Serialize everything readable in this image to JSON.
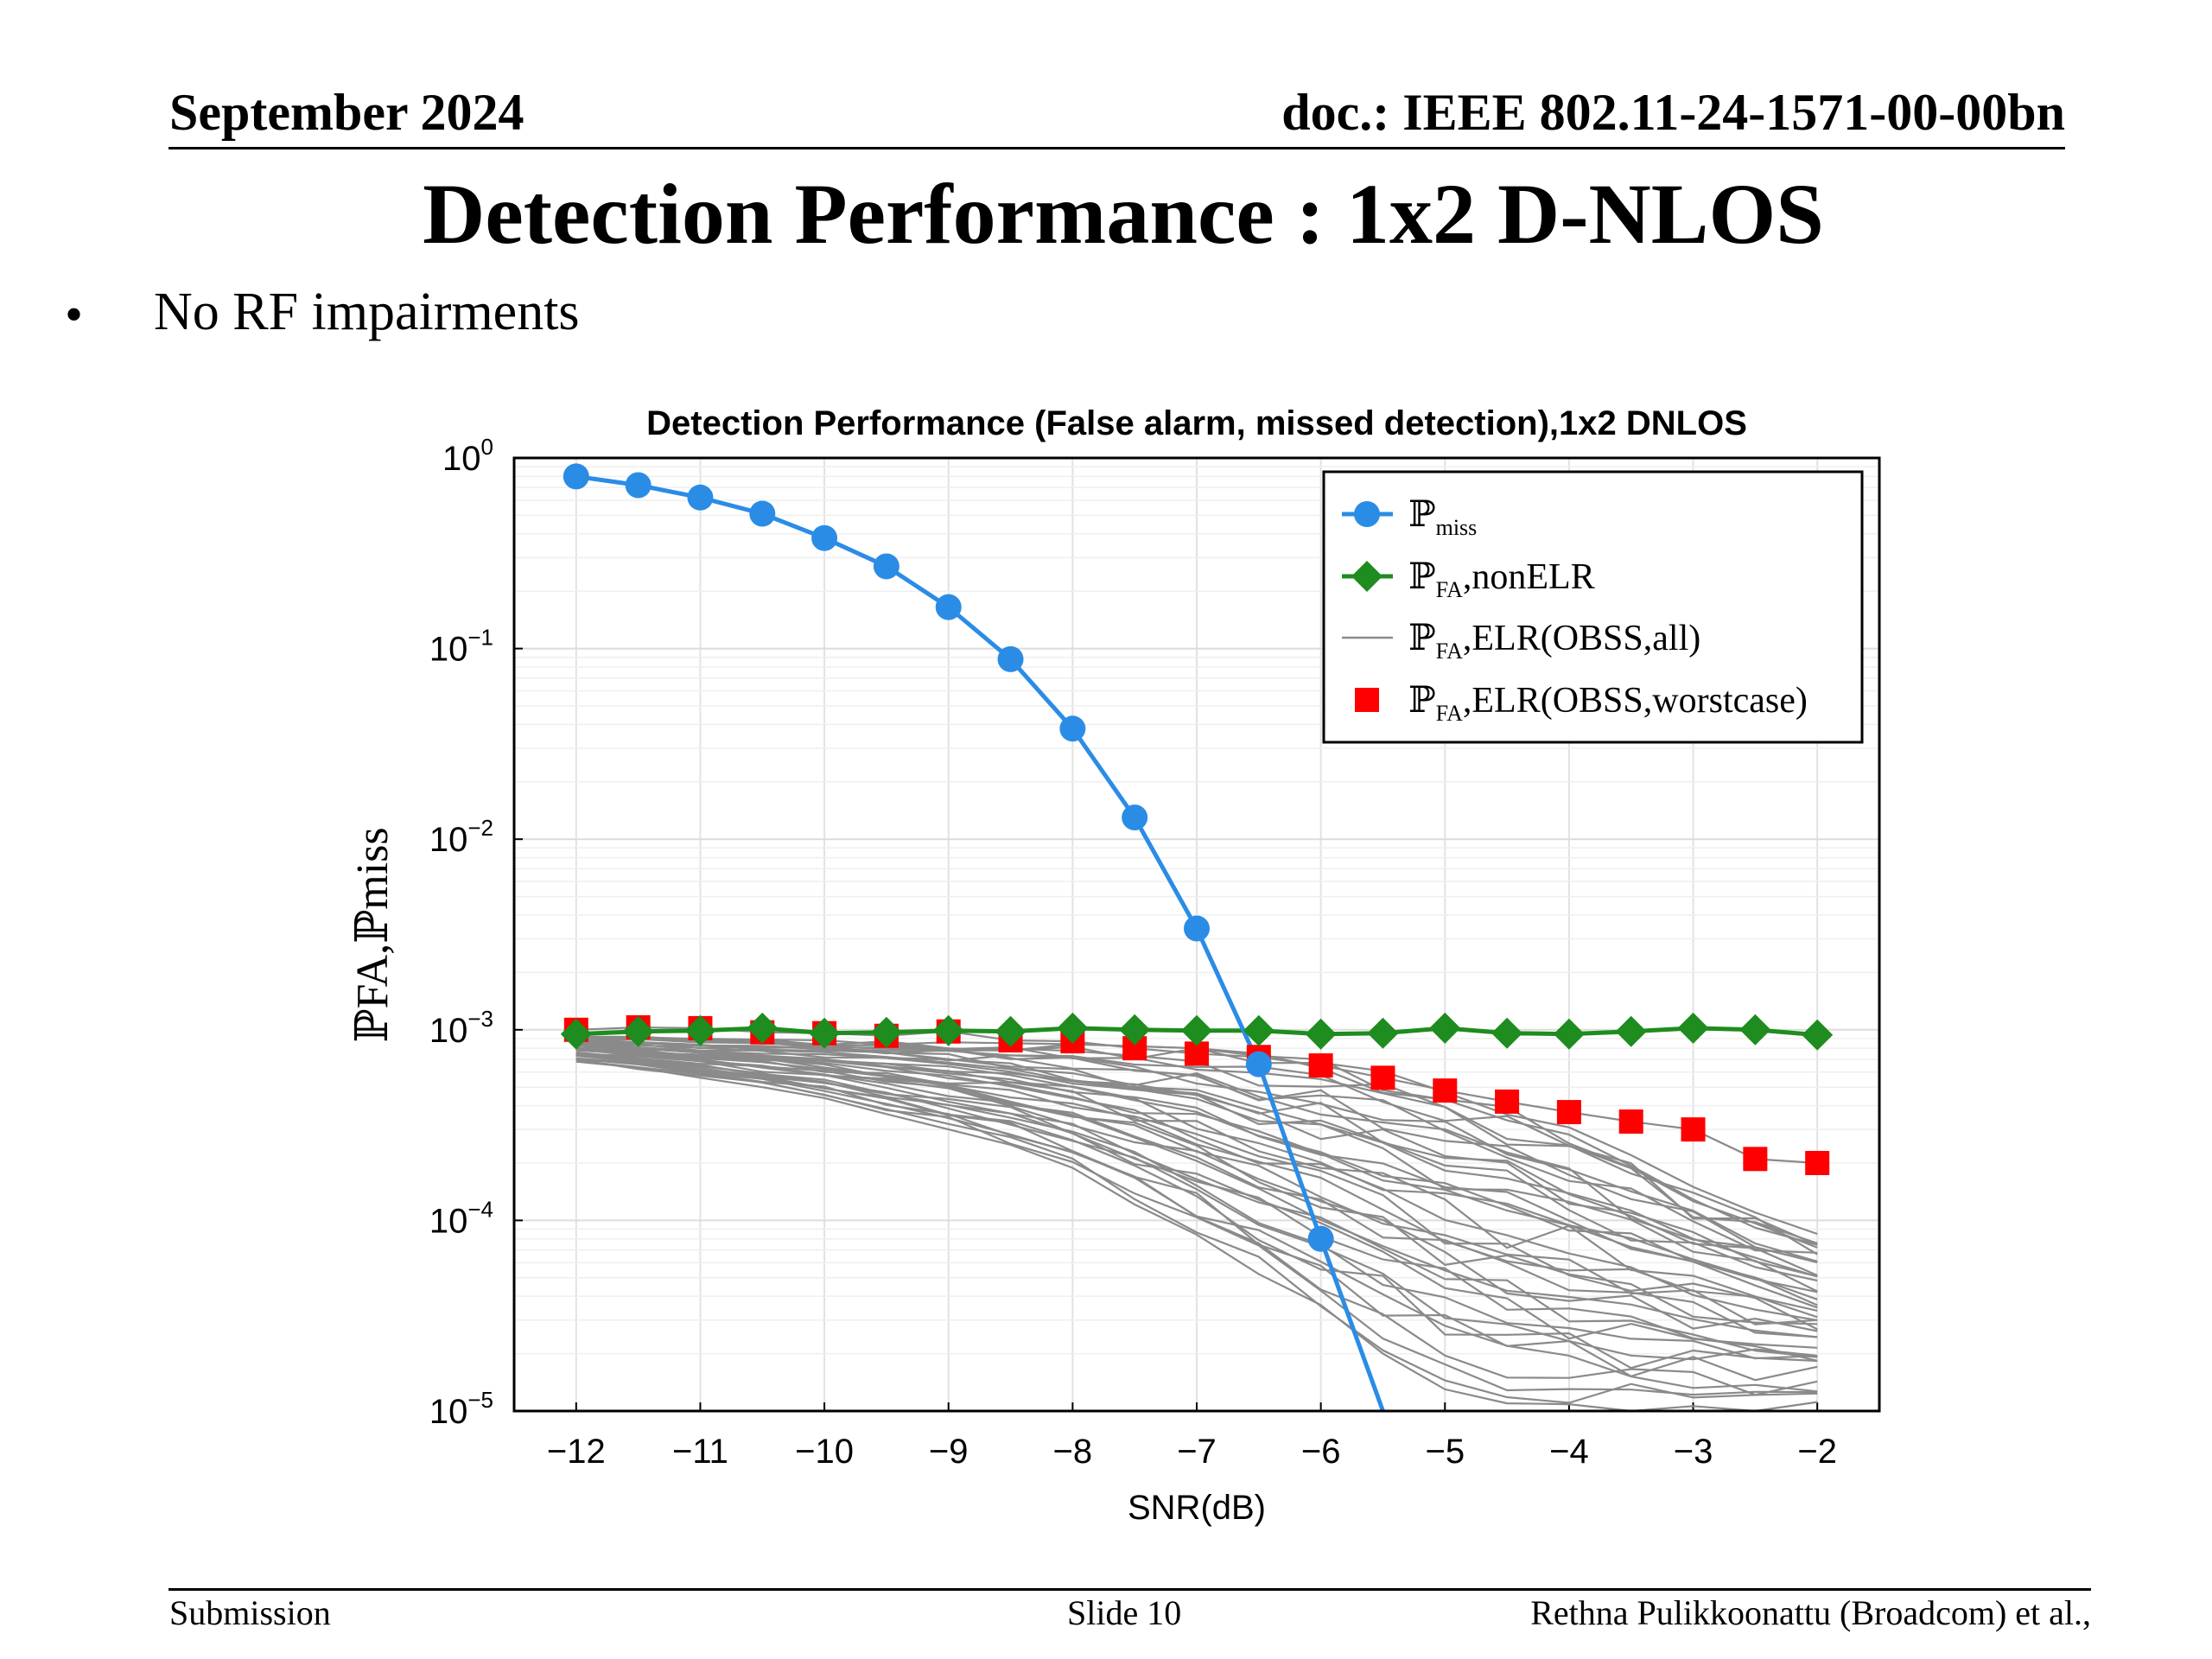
{
  "header": {
    "date": "September 2024",
    "doc": "doc.: IEEE 802.11-24-1571-00-00bn"
  },
  "slide": {
    "title": "Detection Performance : 1x2 D-NLOS",
    "bullet": "No RF impairments"
  },
  "footer": {
    "left": "Submission",
    "center": "Slide 10",
    "right": "Rethna Pulikkoonattu (Broadcom) et al.,"
  },
  "chart_data": {
    "type": "line",
    "title": "Detection Performance (False alarm, missed detection),1x2 DNLOS",
    "xlabel": "SNR(dB)",
    "ylabel": "ℙFA,ℙmiss",
    "xlim": [
      -12.5,
      -1.5
    ],
    "ylim": [
      1e-05,
      1
    ],
    "yscale": "log",
    "grid": true,
    "legend_position": "top-right",
    "x_ticks": [
      -12,
      -11,
      -10,
      -9,
      -8,
      -7,
      -6,
      -5,
      -4,
      -3,
      -2
    ],
    "x_tick_labels": [
      "−12",
      "−11",
      "−10",
      "−9",
      "−8",
      "−7",
      "−6",
      "−5",
      "−4",
      "−3",
      "−2"
    ],
    "y_ticks": [
      {
        "value": 1,
        "base": "10",
        "exp": "0"
      },
      {
        "value": 0.1,
        "base": "10",
        "exp": "−1"
      },
      {
        "value": 0.01,
        "base": "10",
        "exp": "−2"
      },
      {
        "value": 0.001,
        "base": "10",
        "exp": "−3"
      },
      {
        "value": 0.0001,
        "base": "10",
        "exp": "−4"
      },
      {
        "value": 1e-05,
        "base": "10",
        "exp": "−5"
      }
    ],
    "colors": {
      "miss": "#2b8ce6",
      "nonelr": "#1e8c1e",
      "obss_all": "#8a8a8a",
      "worst": "#ff0000"
    },
    "series": [
      {
        "key": "miss",
        "legend": {
          "base": "ℙ",
          "sub": "miss",
          "suffix": ""
        },
        "marker": "circle",
        "x": [
          -12,
          -11.5,
          -11,
          -10.5,
          -10,
          -9.5,
          -9,
          -8.5,
          -8,
          -7.5,
          -7,
          -6.5,
          -6,
          -5.5
        ],
        "y": [
          0.8,
          0.72,
          0.62,
          0.51,
          0.38,
          0.27,
          0.165,
          0.088,
          0.038,
          0.013,
          0.0034,
          0.00066,
          8e-05,
          1e-05
        ]
      },
      {
        "key": "nonelr",
        "legend": {
          "base": "ℙ",
          "sub": "FA",
          "suffix": ",nonELR"
        },
        "marker": "diamond",
        "x": [
          -12,
          -11.5,
          -11,
          -10.5,
          -10,
          -9.5,
          -9,
          -8.5,
          -8,
          -7.5,
          -7,
          -6.5,
          -6,
          -5.5,
          -5,
          -4.5,
          -4,
          -3.5,
          -3,
          -2.5,
          -2
        ],
        "y": [
          0.00095,
          0.00098,
          0.00099,
          0.00102,
          0.00096,
          0.00097,
          0.00099,
          0.00098,
          0.00102,
          0.001,
          0.00099,
          0.00099,
          0.00095,
          0.00096,
          0.00102,
          0.00096,
          0.00095,
          0.00098,
          0.00102,
          0.001,
          0.00094
        ]
      },
      {
        "key": "obss_all",
        "legend": {
          "base": "ℙ",
          "sub": "FA",
          "suffix": ",ELR(OBSS,all)"
        },
        "marker": "none",
        "x": [
          -12,
          -11.5,
          -11,
          -10.5,
          -10,
          -9.5,
          -9,
          -8.5,
          -8,
          -7.5,
          -7,
          -6.5,
          -6,
          -5.5,
          -5,
          -4.5,
          -4,
          -3.5,
          -3,
          -2.5,
          -2
        ],
        "envelope": {
          "upper": [
            0.00092,
            0.00092,
            0.0009,
            0.00089,
            0.00088,
            0.00087,
            0.00086,
            0.00085,
            0.00084,
            0.00082,
            0.0008,
            0.00075,
            0.0007,
            0.00062,
            0.00052,
            0.00042,
            0.00032,
            0.00022,
            0.00015,
            0.00011,
            8.5e-05
          ],
          "lower": [
            0.00068,
            0.00062,
            0.00056,
            0.0005,
            0.00043,
            0.00036,
            0.0003,
            0.00024,
            0.00018,
            0.00012,
            8e-05,
            5e-05,
            3.2e-05,
            2e-05,
            1.3e-05,
            1e-05,
            1e-05,
            1e-05,
            1e-05,
            1e-05,
            1e-05
          ]
        },
        "curve_count": 40
      },
      {
        "key": "worst",
        "legend": {
          "base": "ℙ",
          "sub": "FA",
          "suffix": ",ELR(OBSS,worstcase)"
        },
        "marker": "square",
        "x": [
          -12,
          -11.5,
          -11,
          -10.5,
          -10,
          -9.5,
          -9,
          -8.5,
          -8,
          -7.5,
          -7,
          -6.5,
          -6,
          -5.5,
          -5,
          -4.5,
          -4,
          -3.5,
          -3,
          -2.5,
          -2
        ],
        "y": [
          0.001,
          0.00103,
          0.00102,
          0.00097,
          0.00096,
          0.00093,
          0.00098,
          0.00088,
          0.00087,
          0.0008,
          0.00075,
          0.00072,
          0.00065,
          0.00056,
          0.00048,
          0.00042,
          0.00037,
          0.00033,
          0.0003,
          0.00021,
          0.0002
        ]
      }
    ]
  }
}
